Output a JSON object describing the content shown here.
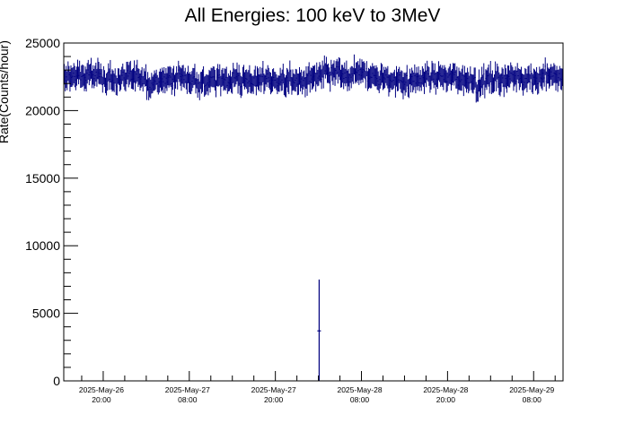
{
  "chart_data": {
    "type": "scatter",
    "title": "All Energies:  100 keV to 3MeV",
    "xlabel": "",
    "ylabel": "Rate(Counts/hour)",
    "ylim": [
      0,
      25000
    ],
    "y_ticks": [
      "0",
      "5000",
      "10000",
      "15000",
      "20000",
      "25000"
    ],
    "x_ticks": [
      {
        "date": "2025-May-26",
        "time": "20:00"
      },
      {
        "date": "2025-May-27",
        "time": "08:00"
      },
      {
        "date": "2025-May-27",
        "time": "20:00"
      },
      {
        "date": "2025-May-28",
        "time": "08:00"
      },
      {
        "date": "2025-May-28",
        "time": "20:00"
      },
      {
        "date": "2025-May-29",
        "time": "08:00"
      }
    ],
    "x_range_hours": [
      0,
      69.6
    ],
    "x_tick_hours": [
      5.5,
      17.5,
      29.5,
      41.5,
      53.5,
      65.5
    ],
    "series": [
      {
        "name": "",
        "color": "#000080",
        "baseline_rate": 22400,
        "typical_error": 700,
        "n_points": 520,
        "outliers": [
          {
            "hour": 35.6,
            "value": 3700,
            "err_low": 3700,
            "err_high": 3800
          }
        ]
      }
    ]
  }
}
